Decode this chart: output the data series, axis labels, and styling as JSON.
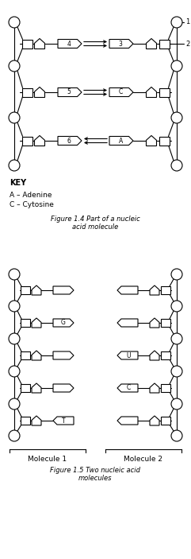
{
  "fig_width": 2.41,
  "fig_height": 7.03,
  "dpi": 100,
  "bg_color": "#ffffff",
  "line_color": "#000000",
  "line_width": 0.8,
  "f1": {
    "rows": [
      {
        "left_label": "4",
        "right_label": "3",
        "dir": "right"
      },
      {
        "left_label": "5",
        "right_label": "C",
        "dir": "right"
      },
      {
        "left_label": "6",
        "right_label": "A",
        "dir": "left"
      }
    ],
    "key": [
      "KEY",
      "A – Adenine",
      "C – Cytosine"
    ],
    "caption": "Figure 1.4 Part of a nucleic\nacid molecule"
  },
  "f2": {
    "rows": [
      {
        "left_label": "",
        "right_label": "",
        "left_dir": "right",
        "right_dir": "left"
      },
      {
        "left_label": "G",
        "right_label": "",
        "left_dir": "right",
        "right_dir": "left"
      },
      {
        "left_label": "",
        "right_label": "U",
        "left_dir": "right",
        "right_dir": "left"
      },
      {
        "left_label": "",
        "right_label": "C",
        "left_dir": "right",
        "right_dir": "left"
      },
      {
        "left_label": "T",
        "right_label": "",
        "left_dir": "left",
        "right_dir": "left"
      }
    ],
    "caption": "Figure 1.5 Two nucleic acid\nmolecules",
    "mol1": "Molecule 1",
    "mol2": "Molecule 2"
  }
}
